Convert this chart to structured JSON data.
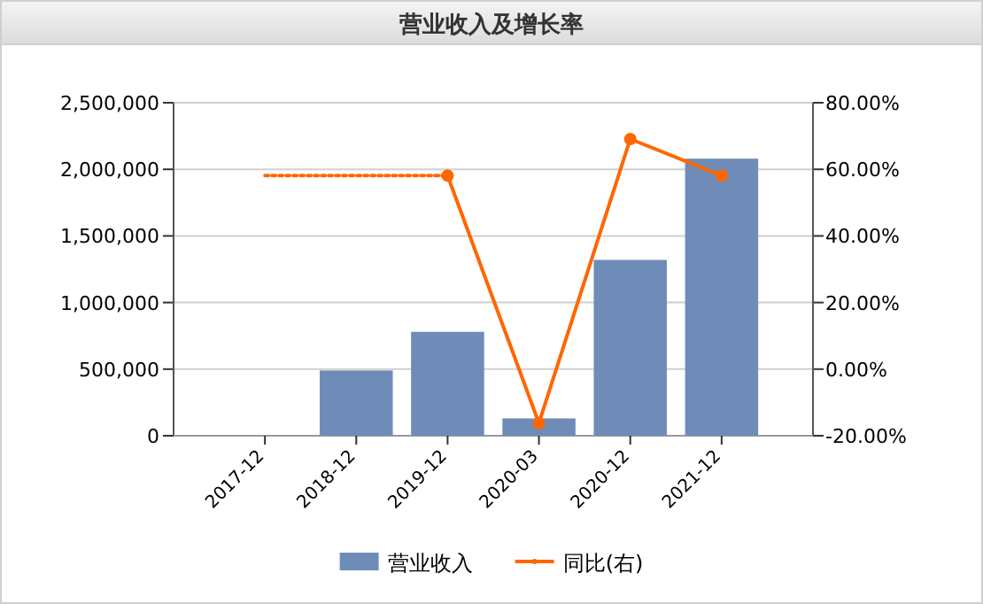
{
  "chart_data": {
    "type": "bar",
    "title": "营业收入及增长率",
    "categories": [
      "2017-12",
      "2018-12",
      "2019-12",
      "2020-03",
      "2020-12",
      "2021-12"
    ],
    "series": [
      {
        "name": "营业收入",
        "color": "#6f8cb8",
        "values": [
          null,
          490000,
          780000,
          130000,
          1320000,
          2080000
        ]
      },
      {
        "name": "同比(右)",
        "type": "line",
        "axis": "y2",
        "color": "#ff6600",
        "marker": "circle",
        "line_style": "solid",
        "values": [
          null,
          null,
          58.1,
          -16.2,
          69.1,
          58.1
        ]
      },
      {
        "type": "line",
        "axis": "y2",
        "color": "#ff6600",
        "marker": "none",
        "line_style": "dotted",
        "values": [
          58.1,
          58.1,
          58.1,
          null,
          null,
          null
        ]
      }
    ],
    "ylim": [
      0,
      2500000
    ],
    "yticks": [
      {
        "value": 0,
        "label": "0"
      },
      {
        "value": 500000,
        "label": "500,000"
      },
      {
        "value": 1000000,
        "label": "1,000,000"
      },
      {
        "value": 1500000,
        "label": "1,500,000"
      },
      {
        "value": 2000000,
        "label": "2,000,000"
      },
      {
        "value": 2500000,
        "label": "2,500,000"
      }
    ],
    "y2lim": [
      -20,
      80
    ],
    "y2ticks": [
      {
        "value": -20,
        "label": "-20.00%"
      },
      {
        "value": 0,
        "label": "0.00%"
      },
      {
        "value": 20,
        "label": "20.00%"
      },
      {
        "value": 40,
        "label": "40.00%"
      },
      {
        "value": 60,
        "label": "60.00%"
      },
      {
        "value": 80,
        "label": "80.00%"
      }
    ],
    "grid": "y",
    "legend": "bottom"
  }
}
